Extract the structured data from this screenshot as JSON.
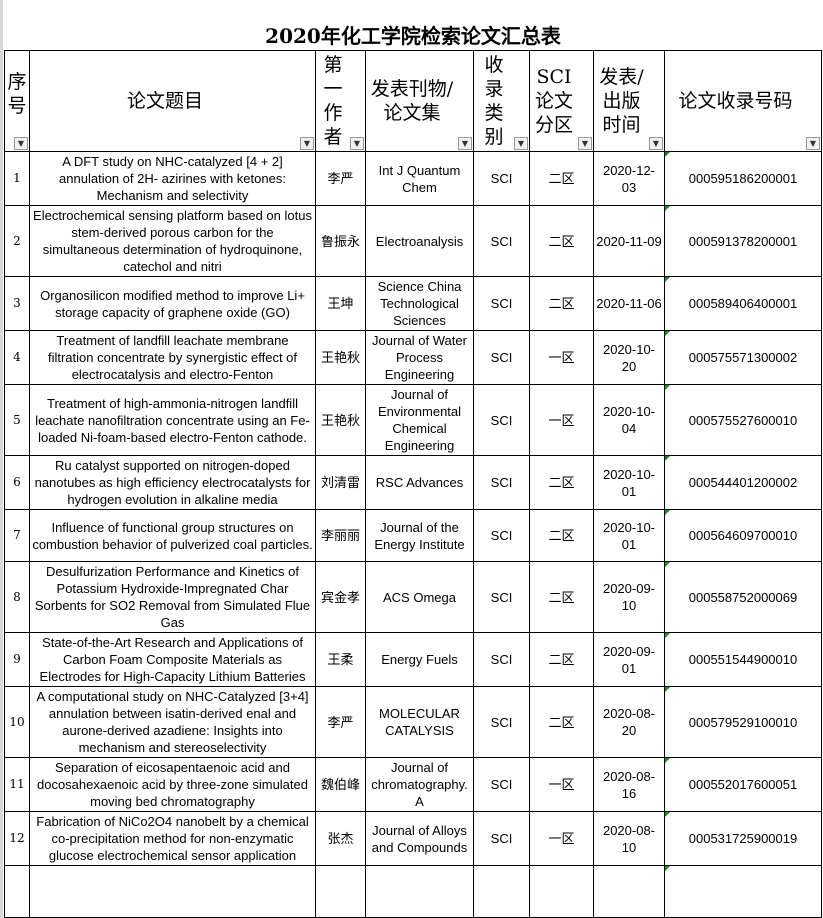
{
  "title": "2020年化工学院检索论文汇总表",
  "headers": [
    "序号",
    "论文题目",
    "第一作者",
    "发表刊物/论文集",
    "收录类别",
    "SCI论文分区",
    "发表/出版时间",
    "论文收录号码"
  ],
  "filter_icon": "dropdown-arrow-icon",
  "rows": [
    {
      "no": "1",
      "title": "A DFT study on NHC-catalyzed [4 + 2] annulation of 2H- azirines with ketones: Mechanism and selectivity",
      "author": "李严",
      "journal": "Int J Quantum Chem",
      "type": "SCI",
      "zone": "二区",
      "date": "2020-12-03",
      "accession": "000595186200001"
    },
    {
      "no": "2",
      "title": "Electrochemical sensing platform based on lotus stem-derived porous carbon for the simultaneous determination of hydroquinone, catechol and nitri",
      "author": "鲁振永",
      "journal": "Electroanalysis",
      "type": "SCI",
      "zone": "二区",
      "date": "2020-11-09",
      "accession": "000591378200001"
    },
    {
      "no": "3",
      "title": "Organosilicon modified method to improve Li+ storage capacity of graphene oxide (GO)",
      "author": "王坤",
      "journal": "Science China Technological Sciences",
      "type": "SCI",
      "zone": "二区",
      "date": "2020-11-06",
      "accession": "000589406400001"
    },
    {
      "no": "4",
      "title": "Treatment of landfill leachate membrane filtration concentrate by synergistic effect of electrocatalysis and electro-Fenton",
      "author": "王艳秋",
      "journal": "Journal of Water Process Engineering",
      "type": "SCI",
      "zone": "一区",
      "date": "2020-10-20",
      "accession": "000575571300002"
    },
    {
      "no": "5",
      "title": "Treatment of high-ammonia-nitrogen landfill leachate nanofiltration concentrate using an Fe-loaded Ni-foam-based electro-Fenton cathode.",
      "author": "王艳秋",
      "journal": "Journal of Environmental Chemical Engineering",
      "type": "SCI",
      "zone": "一区",
      "date": "2020-10-04",
      "accession": "000575527600010"
    },
    {
      "no": "6",
      "title": "Ru catalyst supported on nitrogen-doped nanotubes as high efficiency electrocatalysts for hydrogen evolution in alkaline media",
      "author": "刘清雷",
      "journal": "RSC Advances",
      "type": "SCI",
      "zone": "二区",
      "date": "2020-10-01",
      "accession": "000544401200002"
    },
    {
      "no": "7",
      "title": "Influence of functional group structures on combustion behavior of pulverized coal particles.",
      "author": "李丽丽",
      "journal": "Journal of the Energy Institute",
      "type": "SCI",
      "zone": "二区",
      "date": "2020-10-01",
      "accession": "000564609700010"
    },
    {
      "no": "8",
      "title": "Desulfurization Performance and Kinetics of Potassium Hydroxide-Impregnated Char Sorbents for SO2 Removal from Simulated Flue Gas",
      "author": "宾金孝",
      "journal": "ACS Omega",
      "type": "SCI",
      "zone": "二区",
      "date": "2020-09-10",
      "accession": "000558752000069"
    },
    {
      "no": "9",
      "title": "State-of-the-Art Research and Applications of Carbon Foam Composite Materials as Electrodes for High-Capacity Lithium Batteries",
      "author": "王柔",
      "journal": "Energy Fuels",
      "type": "SCI",
      "zone": "二区",
      "date": "2020-09-01",
      "accession": "000551544900010"
    },
    {
      "no": "10",
      "title": "A computational study on NHC-Catalyzed [3+4] annulation between isatin-derived enal and aurone-derived azadiene: Insights into mechanism and stereoselectivity",
      "author": "李严",
      "journal": "MOLECULAR CATALYSIS",
      "type": "SCI",
      "zone": "二区",
      "date": "2020-08-20",
      "accession": "000579529100010"
    },
    {
      "no": "11",
      "title": "Separation of eicosapentaenoic acid and docosahexaenoic acid by three-zone simulated moving bed chromatography",
      "author": "魏伯峰",
      "journal": "Journal of chromatography. A",
      "type": "SCI",
      "zone": "一区",
      "date": "2020-08-16",
      "accession": "000552017600051"
    },
    {
      "no": "12",
      "title": "Fabrication of NiCo2O4 nanobelt by a chemical co-precipitation method for non-enzymatic glucose electrochemical sensor application",
      "author": "张杰",
      "journal": "Journal of Alloys and Compounds",
      "type": "SCI",
      "zone": "一区",
      "date": "2020-08-10",
      "accession": "000531725900019"
    }
  ]
}
